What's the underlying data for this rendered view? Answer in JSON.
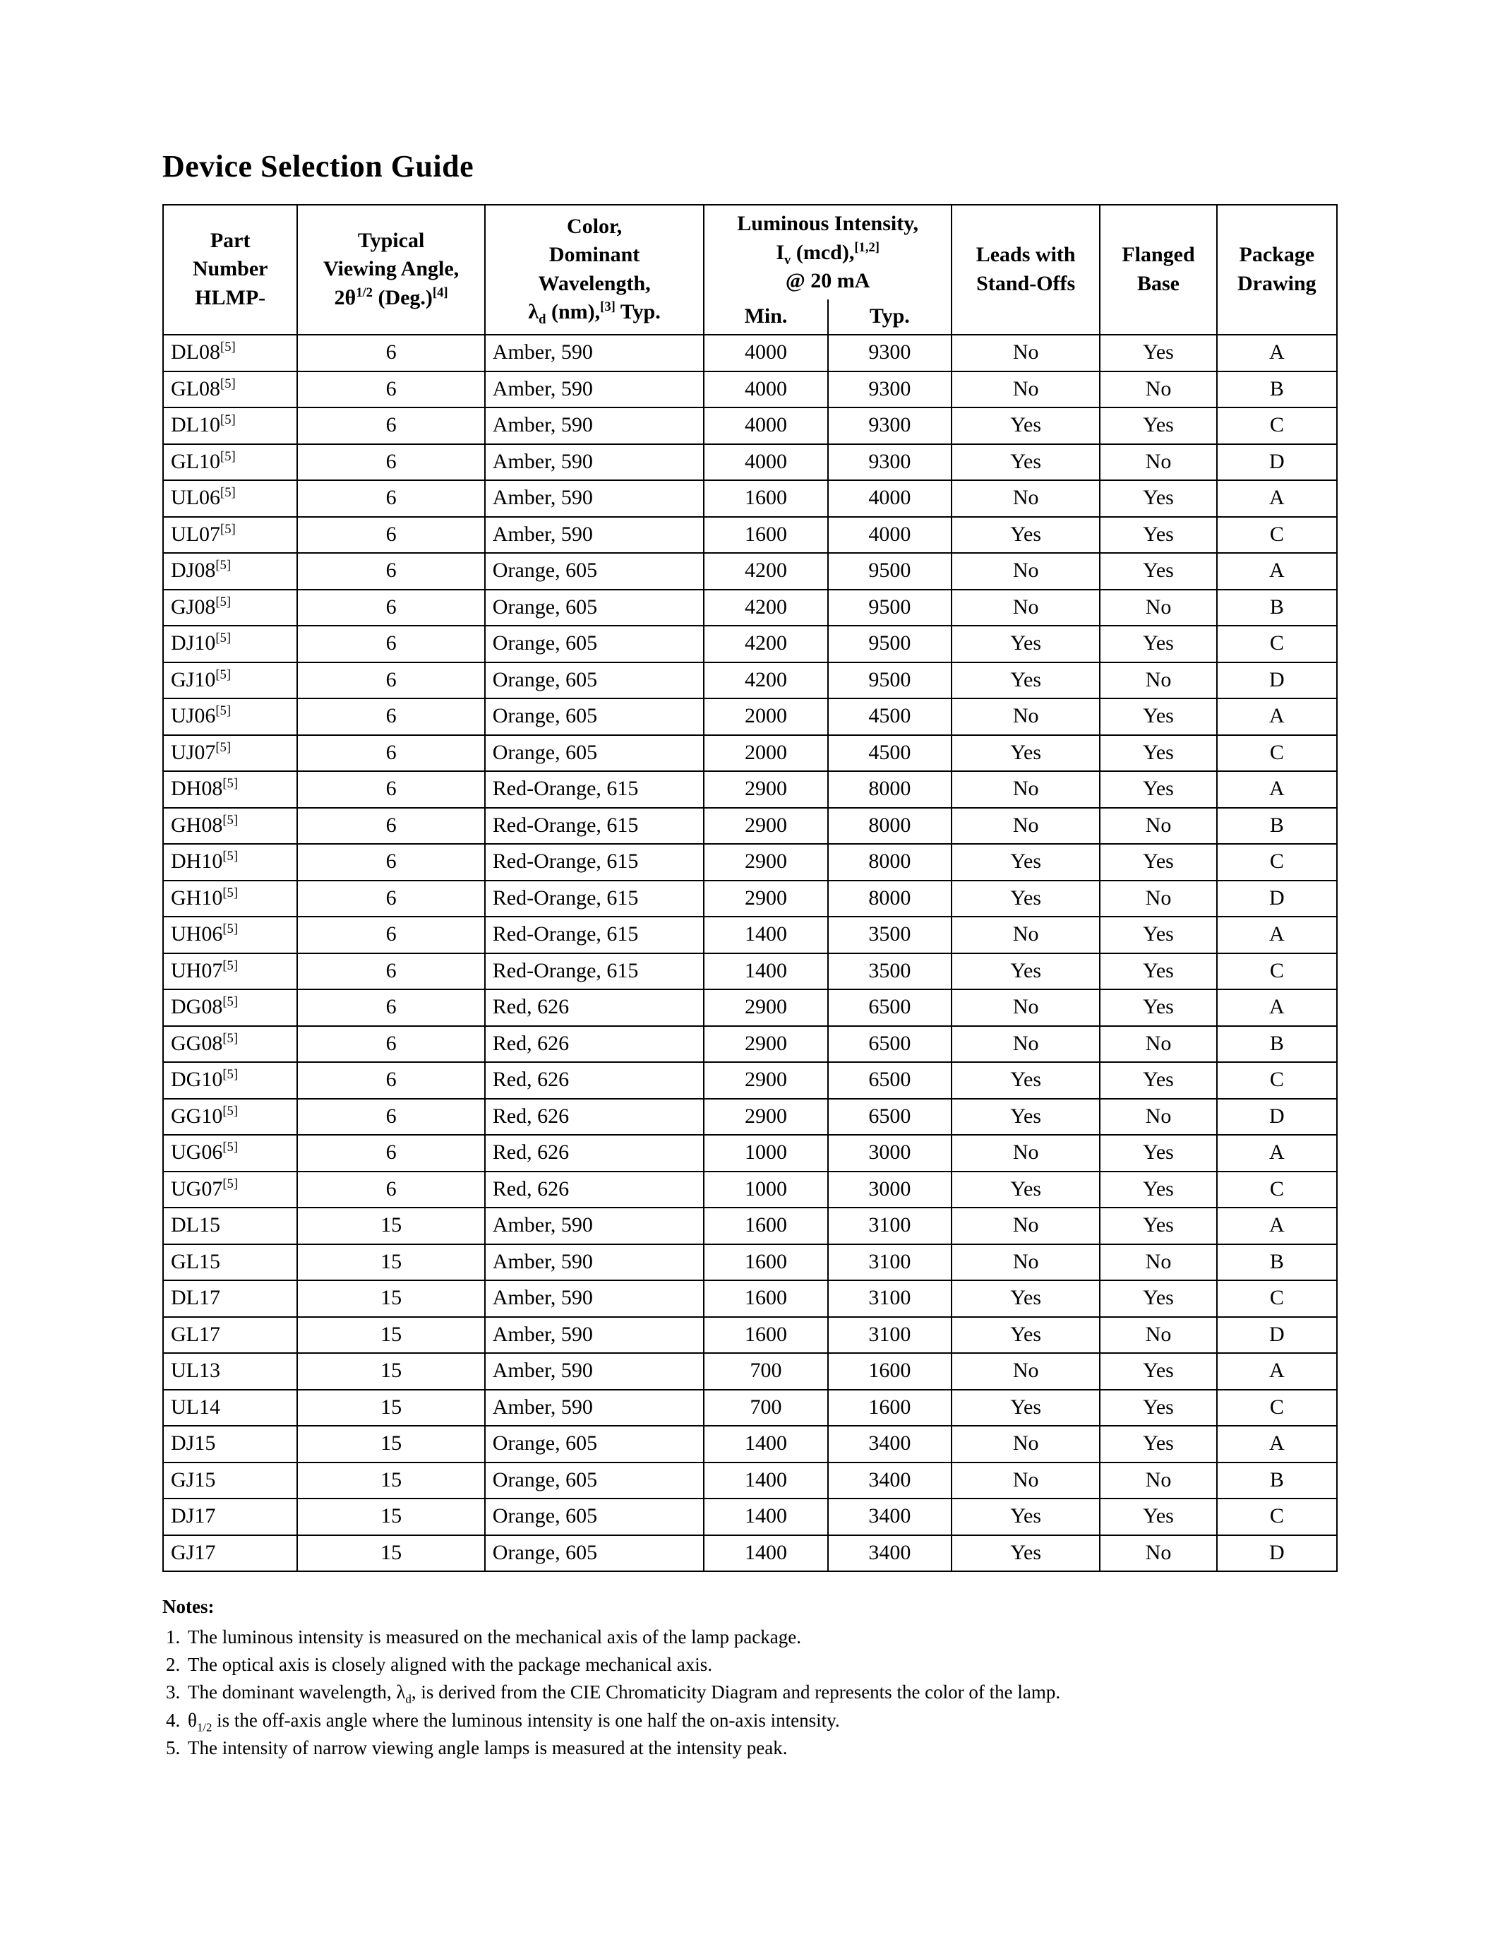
{
  "title": "Device Selection Guide",
  "table": {
    "header": {
      "part_l1": "Part",
      "part_l2": "Number",
      "part_l3": "HLMP-",
      "angle_l1": "Typical",
      "angle_l2": "Viewing Angle,",
      "angle_l3_pre": "2θ",
      "angle_l3_sup": "1/2",
      "angle_l3_post": " (Deg.)",
      "angle_l3_note": "[4]",
      "color_l1": "Color,",
      "color_l2": "Dominant",
      "color_l3": "Wavelength,",
      "color_l4_pre": "λ",
      "color_l4_sub": "d",
      "color_l4_mid": " (nm),",
      "color_l4_note": "[3]",
      "color_l4_post": " Typ.",
      "lum_l1": "Luminous Intensity,",
      "lum_l2_pre": "I",
      "lum_l2_sub": "v",
      "lum_l2_mid": " (mcd),",
      "lum_l2_note": "[1,2]",
      "lum_l3": "@ 20 mA",
      "lum_min": "Min.",
      "lum_typ": "Typ.",
      "leads_l1": "Leads with",
      "leads_l2": "Stand-Offs",
      "flange_l1": "Flanged",
      "flange_l2": "Base",
      "pkg_l1": "Package",
      "pkg_l2": "Drawing"
    },
    "rows": [
      {
        "part": "DL08",
        "note": "[5]",
        "angle": "6",
        "color": "Amber, 590",
        "min": "4000",
        "typ": "9300",
        "leads": "No",
        "flange": "Yes",
        "pkg": "A"
      },
      {
        "part": "GL08",
        "note": "[5]",
        "angle": "6",
        "color": "Amber, 590",
        "min": "4000",
        "typ": "9300",
        "leads": "No",
        "flange": "No",
        "pkg": "B"
      },
      {
        "part": "DL10",
        "note": "[5]",
        "angle": "6",
        "color": "Amber, 590",
        "min": "4000",
        "typ": "9300",
        "leads": "Yes",
        "flange": "Yes",
        "pkg": "C"
      },
      {
        "part": "GL10",
        "note": "[5]",
        "angle": "6",
        "color": "Amber, 590",
        "min": "4000",
        "typ": "9300",
        "leads": "Yes",
        "flange": "No",
        "pkg": "D"
      },
      {
        "part": "UL06",
        "note": "[5]",
        "angle": "6",
        "color": "Amber, 590",
        "min": "1600",
        "typ": "4000",
        "leads": "No",
        "flange": "Yes",
        "pkg": "A"
      },
      {
        "part": "UL07",
        "note": "[5]",
        "angle": "6",
        "color": "Amber, 590",
        "min": "1600",
        "typ": "4000",
        "leads": "Yes",
        "flange": "Yes",
        "pkg": "C"
      },
      {
        "part": "DJ08",
        "note": "[5]",
        "angle": "6",
        "color": "Orange, 605",
        "min": "4200",
        "typ": "9500",
        "leads": "No",
        "flange": "Yes",
        "pkg": "A"
      },
      {
        "part": "GJ08",
        "note": "[5]",
        "angle": "6",
        "color": "Orange, 605",
        "min": "4200",
        "typ": "9500",
        "leads": "No",
        "flange": "No",
        "pkg": "B"
      },
      {
        "part": "DJ10",
        "note": "[5]",
        "angle": "6",
        "color": "Orange, 605",
        "min": "4200",
        "typ": "9500",
        "leads": "Yes",
        "flange": "Yes",
        "pkg": "C"
      },
      {
        "part": "GJ10",
        "note": "[5]",
        "angle": "6",
        "color": "Orange, 605",
        "min": "4200",
        "typ": "9500",
        "leads": "Yes",
        "flange": "No",
        "pkg": "D"
      },
      {
        "part": "UJ06",
        "note": "[5]",
        "angle": "6",
        "color": "Orange, 605",
        "min": "2000",
        "typ": "4500",
        "leads": "No",
        "flange": "Yes",
        "pkg": "A"
      },
      {
        "part": "UJ07",
        "note": "[5]",
        "angle": "6",
        "color": "Orange, 605",
        "min": "2000",
        "typ": "4500",
        "leads": "Yes",
        "flange": "Yes",
        "pkg": "C"
      },
      {
        "part": "DH08",
        "note": "[5]",
        "angle": "6",
        "color": "Red-Orange, 615",
        "min": "2900",
        "typ": "8000",
        "leads": "No",
        "flange": "Yes",
        "pkg": "A"
      },
      {
        "part": "GH08",
        "note": "[5]",
        "angle": "6",
        "color": "Red-Orange, 615",
        "min": "2900",
        "typ": "8000",
        "leads": "No",
        "flange": "No",
        "pkg": "B"
      },
      {
        "part": "DH10",
        "note": "[5]",
        "angle": "6",
        "color": "Red-Orange, 615",
        "min": "2900",
        "typ": "8000",
        "leads": "Yes",
        "flange": "Yes",
        "pkg": "C"
      },
      {
        "part": "GH10",
        "note": "[5]",
        "angle": "6",
        "color": "Red-Orange, 615",
        "min": "2900",
        "typ": "8000",
        "leads": "Yes",
        "flange": "No",
        "pkg": "D"
      },
      {
        "part": "UH06",
        "note": "[5]",
        "angle": "6",
        "color": "Red-Orange, 615",
        "min": "1400",
        "typ": "3500",
        "leads": "No",
        "flange": "Yes",
        "pkg": "A"
      },
      {
        "part": "UH07",
        "note": "[5]",
        "angle": "6",
        "color": "Red-Orange, 615",
        "min": "1400",
        "typ": "3500",
        "leads": "Yes",
        "flange": "Yes",
        "pkg": "C"
      },
      {
        "part": "DG08",
        "note": "[5]",
        "angle": "6",
        "color": "Red, 626",
        "min": "2900",
        "typ": "6500",
        "leads": "No",
        "flange": "Yes",
        "pkg": "A"
      },
      {
        "part": "GG08",
        "note": "[5]",
        "angle": "6",
        "color": "Red, 626",
        "min": "2900",
        "typ": "6500",
        "leads": "No",
        "flange": "No",
        "pkg": "B"
      },
      {
        "part": "DG10",
        "note": "[5]",
        "angle": "6",
        "color": "Red, 626",
        "min": "2900",
        "typ": "6500",
        "leads": "Yes",
        "flange": "Yes",
        "pkg": "C"
      },
      {
        "part": "GG10",
        "note": "[5]",
        "angle": "6",
        "color": "Red, 626",
        "min": "2900",
        "typ": "6500",
        "leads": "Yes",
        "flange": "No",
        "pkg": "D"
      },
      {
        "part": "UG06",
        "note": "[5]",
        "angle": "6",
        "color": "Red, 626",
        "min": "1000",
        "typ": "3000",
        "leads": "No",
        "flange": "Yes",
        "pkg": "A"
      },
      {
        "part": "UG07",
        "note": "[5]",
        "angle": "6",
        "color": "Red, 626",
        "min": "1000",
        "typ": "3000",
        "leads": "Yes",
        "flange": "Yes",
        "pkg": "C"
      },
      {
        "part": "DL15",
        "note": "",
        "angle": "15",
        "color": "Amber, 590",
        "min": "1600",
        "typ": "3100",
        "leads": "No",
        "flange": "Yes",
        "pkg": "A"
      },
      {
        "part": "GL15",
        "note": "",
        "angle": "15",
        "color": "Amber, 590",
        "min": "1600",
        "typ": "3100",
        "leads": "No",
        "flange": "No",
        "pkg": "B"
      },
      {
        "part": "DL17",
        "note": "",
        "angle": "15",
        "color": "Amber, 590",
        "min": "1600",
        "typ": "3100",
        "leads": "Yes",
        "flange": "Yes",
        "pkg": "C"
      },
      {
        "part": "GL17",
        "note": "",
        "angle": "15",
        "color": "Amber, 590",
        "min": "1600",
        "typ": "3100",
        "leads": "Yes",
        "flange": "No",
        "pkg": "D"
      },
      {
        "part": "UL13",
        "note": "",
        "angle": "15",
        "color": "Amber, 590",
        "min": "700",
        "typ": "1600",
        "leads": "No",
        "flange": "Yes",
        "pkg": "A"
      },
      {
        "part": "UL14",
        "note": "",
        "angle": "15",
        "color": "Amber, 590",
        "min": "700",
        "typ": "1600",
        "leads": "Yes",
        "flange": "Yes",
        "pkg": "C"
      },
      {
        "part": "DJ15",
        "note": "",
        "angle": "15",
        "color": "Orange, 605",
        "min": "1400",
        "typ": "3400",
        "leads": "No",
        "flange": "Yes",
        "pkg": "A"
      },
      {
        "part": "GJ15",
        "note": "",
        "angle": "15",
        "color": "Orange, 605",
        "min": "1400",
        "typ": "3400",
        "leads": "No",
        "flange": "No",
        "pkg": "B"
      },
      {
        "part": "DJ17",
        "note": "",
        "angle": "15",
        "color": "Orange, 605",
        "min": "1400",
        "typ": "3400",
        "leads": "Yes",
        "flange": "Yes",
        "pkg": "C"
      },
      {
        "part": "GJ17",
        "note": "",
        "angle": "15",
        "color": "Orange, 605",
        "min": "1400",
        "typ": "3400",
        "leads": "Yes",
        "flange": "No",
        "pkg": "D"
      }
    ]
  },
  "notes": {
    "heading": "Notes:",
    "items": [
      {
        "text": "The luminous intensity is measured on the mechanical axis of the lamp package."
      },
      {
        "text": "The optical axis is closely aligned with the package mechanical axis."
      },
      {
        "pre": "The dominant wavelength, λ",
        "sub": "d",
        "post": ", is derived from the CIE Chromaticity Diagram and represents the color of the lamp."
      },
      {
        "pre": "θ",
        "sub": "1/2",
        "post": " is the off-axis angle where the luminous intensity is one half the on-axis intensity."
      },
      {
        "text": "The intensity of narrow viewing angle lamps is measured at the intensity peak."
      }
    ]
  }
}
